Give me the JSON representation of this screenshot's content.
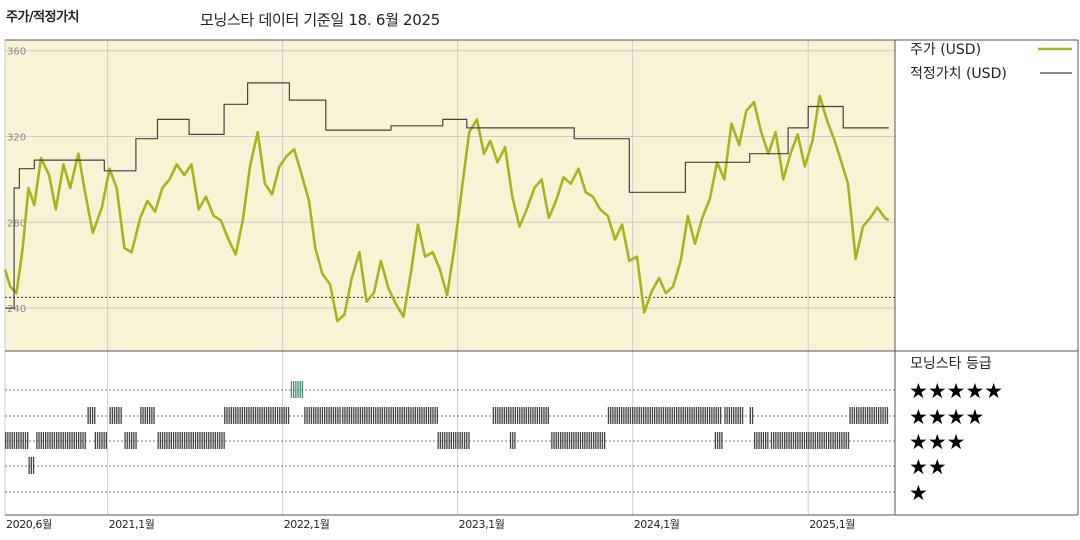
{
  "header": {
    "left_title": "주가/적정가치",
    "center_title": "모닝스타 데이터 기준일 18. 6월 2025"
  },
  "chart_data": {
    "type": "line",
    "ylim": [
      220,
      365
    ],
    "y_ticks": [
      {
        "value": 240,
        "label": "240"
      },
      {
        "value": 280,
        "label": "280"
      },
      {
        "value": 320,
        "label": "320"
      },
      {
        "value": 360,
        "label": "360"
      }
    ],
    "x_range": [
      "2020-06-01",
      "2025-07-01"
    ],
    "x_ticks": [
      {
        "date": "2020-06-01",
        "label": "2020,6월"
      },
      {
        "date": "2021-01-01",
        "label": "2021,1월"
      },
      {
        "date": "2022-01-01",
        "label": "2022,1월"
      },
      {
        "date": "2023-01-01",
        "label": "2023,1월"
      },
      {
        "date": "2024-01-01",
        "label": "2024,1월"
      },
      {
        "date": "2025-01-01",
        "label": "2025,1월"
      }
    ],
    "series": [
      {
        "name": "주가 (USD)",
        "color": "#a9b31f",
        "points": [
          [
            "2020-06-01",
            258
          ],
          [
            "2020-06-12",
            250
          ],
          [
            "2020-06-25",
            247
          ],
          [
            "2020-07-08",
            268
          ],
          [
            "2020-07-20",
            296
          ],
          [
            "2020-08-01",
            288
          ],
          [
            "2020-08-15",
            310
          ],
          [
            "2020-09-01",
            302
          ],
          [
            "2020-09-15",
            286
          ],
          [
            "2020-10-01",
            307
          ],
          [
            "2020-10-15",
            296
          ],
          [
            "2020-11-01",
            312
          ],
          [
            "2020-11-15",
            294
          ],
          [
            "2020-12-01",
            275
          ],
          [
            "2020-12-20",
            287
          ],
          [
            "2021-01-05",
            305
          ],
          [
            "2021-01-20",
            296
          ],
          [
            "2021-02-05",
            268
          ],
          [
            "2021-02-20",
            266
          ],
          [
            "2021-03-10",
            282
          ],
          [
            "2021-03-25",
            290
          ],
          [
            "2021-04-10",
            285
          ],
          [
            "2021-04-25",
            296
          ],
          [
            "2021-05-10",
            300
          ],
          [
            "2021-05-25",
            307
          ],
          [
            "2021-06-10",
            302
          ],
          [
            "2021-06-25",
            307
          ],
          [
            "2021-07-10",
            286
          ],
          [
            "2021-07-25",
            292
          ],
          [
            "2021-08-10",
            283
          ],
          [
            "2021-08-25",
            281
          ],
          [
            "2021-09-10",
            272
          ],
          [
            "2021-09-25",
            265
          ],
          [
            "2021-10-10",
            281
          ],
          [
            "2021-10-25",
            306
          ],
          [
            "2021-11-10",
            322
          ],
          [
            "2021-11-25",
            298
          ],
          [
            "2021-12-10",
            293
          ],
          [
            "2021-12-25",
            306
          ],
          [
            "2022-01-10",
            311
          ],
          [
            "2022-01-25",
            314
          ],
          [
            "2022-02-10",
            302
          ],
          [
            "2022-02-25",
            290
          ],
          [
            "2022-03-10",
            268
          ],
          [
            "2022-03-25",
            256
          ],
          [
            "2022-04-10",
            251
          ],
          [
            "2022-04-25",
            234
          ],
          [
            "2022-05-10",
            237
          ],
          [
            "2022-05-25",
            254
          ],
          [
            "2022-06-10",
            266
          ],
          [
            "2022-06-25",
            243
          ],
          [
            "2022-07-10",
            247
          ],
          [
            "2022-07-25",
            262
          ],
          [
            "2022-08-10",
            249
          ],
          [
            "2022-08-25",
            242
          ],
          [
            "2022-09-10",
            236
          ],
          [
            "2022-09-25",
            256
          ],
          [
            "2022-10-10",
            279
          ],
          [
            "2022-10-25",
            264
          ],
          [
            "2022-11-10",
            266
          ],
          [
            "2022-11-25",
            258
          ],
          [
            "2022-12-10",
            246
          ],
          [
            "2022-12-25",
            268
          ],
          [
            "2023-01-10",
            296
          ],
          [
            "2023-01-25",
            322
          ],
          [
            "2023-02-10",
            328
          ],
          [
            "2023-02-25",
            312
          ],
          [
            "2023-03-10",
            318
          ],
          [
            "2023-03-25",
            308
          ],
          [
            "2023-04-10",
            315
          ],
          [
            "2023-04-25",
            292
          ],
          [
            "2023-05-10",
            278
          ],
          [
            "2023-05-25",
            286
          ],
          [
            "2023-06-10",
            296
          ],
          [
            "2023-06-25",
            300
          ],
          [
            "2023-07-10",
            282
          ],
          [
            "2023-07-25",
            290
          ],
          [
            "2023-08-10",
            301
          ],
          [
            "2023-08-25",
            298
          ],
          [
            "2023-09-10",
            305
          ],
          [
            "2023-09-25",
            294
          ],
          [
            "2023-10-10",
            292
          ],
          [
            "2023-10-25",
            286
          ],
          [
            "2023-11-10",
            283
          ],
          [
            "2023-11-25",
            272
          ],
          [
            "2023-12-10",
            279
          ],
          [
            "2023-12-25",
            262
          ],
          [
            "2024-01-10",
            264
          ],
          [
            "2024-01-25",
            238
          ],
          [
            "2024-02-10",
            248
          ],
          [
            "2024-02-25",
            254
          ],
          [
            "2024-03-10",
            247
          ],
          [
            "2024-03-25",
            250
          ],
          [
            "2024-04-10",
            262
          ],
          [
            "2024-04-25",
            283
          ],
          [
            "2024-05-10",
            270
          ],
          [
            "2024-05-25",
            282
          ],
          [
            "2024-06-10",
            291
          ],
          [
            "2024-06-25",
            308
          ],
          [
            "2024-07-10",
            300
          ],
          [
            "2024-07-25",
            326
          ],
          [
            "2024-08-10",
            316
          ],
          [
            "2024-08-25",
            332
          ],
          [
            "2024-09-10",
            336
          ],
          [
            "2024-09-25",
            322
          ],
          [
            "2024-10-10",
            312
          ],
          [
            "2024-10-25",
            322
          ],
          [
            "2024-11-10",
            300
          ],
          [
            "2024-11-25",
            312
          ],
          [
            "2024-12-10",
            321
          ],
          [
            "2024-12-25",
            306
          ],
          [
            "2025-01-10",
            318
          ],
          [
            "2025-01-25",
            339
          ],
          [
            "2025-02-10",
            327
          ],
          [
            "2025-02-25",
            318
          ],
          [
            "2025-03-10",
            309
          ],
          [
            "2025-03-25",
            298
          ],
          [
            "2025-04-10",
            263
          ],
          [
            "2025-04-25",
            278
          ],
          [
            "2025-05-10",
            282
          ],
          [
            "2025-05-25",
            287
          ],
          [
            "2025-06-10",
            282
          ],
          [
            "2025-06-18",
            281
          ]
        ]
      },
      {
        "name": "적정가치 (USD)",
        "color": "#444444",
        "step": true,
        "points": [
          [
            "2020-06-01",
            240
          ],
          [
            "2020-06-20",
            240
          ],
          [
            "2020-06-20",
            296
          ],
          [
            "2020-07-01",
            296
          ],
          [
            "2020-07-01",
            305
          ],
          [
            "2020-08-01",
            305
          ],
          [
            "2020-08-01",
            309
          ],
          [
            "2020-12-25",
            309
          ],
          [
            "2020-12-25",
            304
          ],
          [
            "2021-03-01",
            304
          ],
          [
            "2021-03-01",
            319
          ],
          [
            "2021-04-15",
            319
          ],
          [
            "2021-04-15",
            328
          ],
          [
            "2021-06-20",
            328
          ],
          [
            "2021-06-20",
            321
          ],
          [
            "2021-09-01",
            321
          ],
          [
            "2021-09-01",
            335
          ],
          [
            "2021-10-20",
            335
          ],
          [
            "2021-10-20",
            345
          ],
          [
            "2022-01-15",
            345
          ],
          [
            "2022-01-15",
            337
          ],
          [
            "2022-04-01",
            337
          ],
          [
            "2022-04-01",
            323
          ],
          [
            "2022-08-15",
            323
          ],
          [
            "2022-08-15",
            325
          ],
          [
            "2022-12-01",
            325
          ],
          [
            "2022-12-01",
            328
          ],
          [
            "2023-01-20",
            328
          ],
          [
            "2023-01-20",
            324
          ],
          [
            "2023-09-01",
            324
          ],
          [
            "2023-09-01",
            319
          ],
          [
            "2023-12-25",
            319
          ],
          [
            "2023-12-25",
            294
          ],
          [
            "2024-04-20",
            294
          ],
          [
            "2024-04-20",
            308
          ],
          [
            "2024-09-01",
            308
          ],
          [
            "2024-09-01",
            312
          ],
          [
            "2024-11-20",
            312
          ],
          [
            "2024-11-20",
            324
          ],
          [
            "2025-01-01",
            324
          ],
          [
            "2025-01-01",
            334
          ],
          [
            "2025-03-15",
            334
          ],
          [
            "2025-03-15",
            324
          ],
          [
            "2025-06-18",
            324
          ]
        ]
      }
    ],
    "reference_lines": [
      {
        "value": 245
      }
    ],
    "rating": {
      "title": "모닝스타 등급",
      "levels": [
        "★★★★★",
        "★★★★",
        "★★★",
        "★★",
        "★"
      ],
      "highlight_color": "#3e8e6e",
      "bar_color": "#444444",
      "periods": [
        {
          "start": "2020-06-01",
          "end": "2020-07-20",
          "stars": 3
        },
        {
          "start": "2020-07-20",
          "end": "2020-08-01",
          "stars": 2
        },
        {
          "start": "2020-08-05",
          "end": "2020-11-15",
          "stars": 3
        },
        {
          "start": "2020-11-20",
          "end": "2020-12-05",
          "stars": 4
        },
        {
          "start": "2020-12-05",
          "end": "2020-12-30",
          "stars": 3
        },
        {
          "start": "2021-01-05",
          "end": "2021-01-28",
          "stars": 4
        },
        {
          "start": "2021-02-05",
          "end": "2021-03-01",
          "stars": 3
        },
        {
          "start": "2021-03-10",
          "end": "2021-04-10",
          "stars": 4
        },
        {
          "start": "2021-04-15",
          "end": "2021-09-01",
          "stars": 3
        },
        {
          "start": "2021-09-01",
          "end": "2022-01-15",
          "stars": 4
        },
        {
          "start": "2022-01-18",
          "end": "2022-02-12",
          "stars": 5
        },
        {
          "start": "2022-02-15",
          "end": "2022-05-01",
          "stars": 4
        },
        {
          "start": "2022-05-05",
          "end": "2022-11-20",
          "stars": 4
        },
        {
          "start": "2022-11-20",
          "end": "2023-01-25",
          "stars": 3
        },
        {
          "start": "2023-03-15",
          "end": "2023-07-10",
          "stars": 4
        },
        {
          "start": "2023-04-20",
          "end": "2023-04-30",
          "stars": 3
        },
        {
          "start": "2023-07-15",
          "end": "2023-11-05",
          "stars": 3
        },
        {
          "start": "2023-11-10",
          "end": "2024-07-05",
          "stars": 4
        },
        {
          "start": "2024-07-10",
          "end": "2024-08-20",
          "stars": 4
        },
        {
          "start": "2024-06-20",
          "end": "2024-07-05",
          "stars": 3
        },
        {
          "start": "2024-09-01",
          "end": "2024-09-10",
          "stars": 4
        },
        {
          "start": "2024-09-10",
          "end": "2024-10-10",
          "stars": 3
        },
        {
          "start": "2024-10-15",
          "end": "2025-03-25",
          "stars": 3
        },
        {
          "start": "2025-03-28",
          "end": "2025-06-18",
          "stars": 4
        }
      ]
    },
    "colors": {
      "plot_background": "#f7f3d4",
      "price_line": "#a9b31f",
      "fair_value_line": "#444444",
      "grid": "#cccccc"
    },
    "grid": true,
    "legend_position": "right"
  }
}
